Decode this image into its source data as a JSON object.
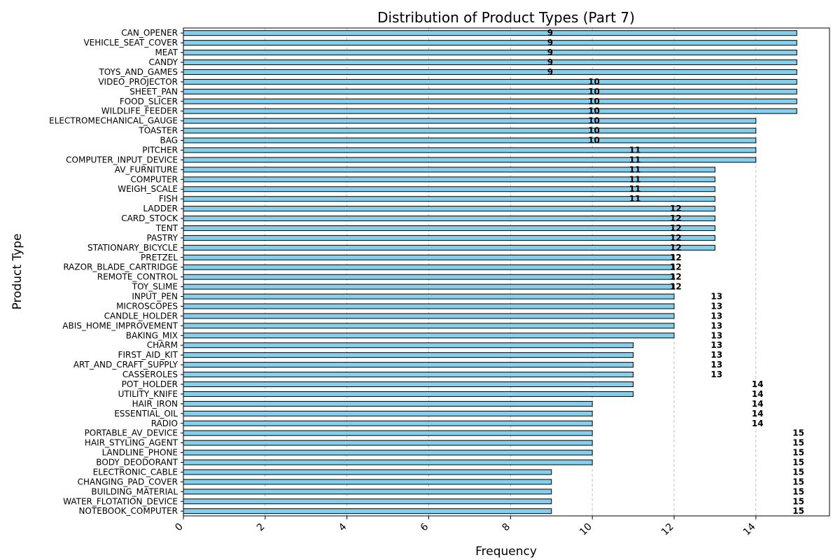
{
  "chart_data": {
    "type": "bar",
    "orientation": "horizontal",
    "title": "Distribution of Product Types (Part 7)",
    "xlabel": "Frequency",
    "ylabel": "Product Type",
    "xlim": [
      0,
      15.8
    ],
    "xticks": [
      0,
      2,
      4,
      6,
      8,
      10,
      12,
      14
    ],
    "grid": "x-axis dashed",
    "bar_color": "#87ceeb",
    "bar_edge_color": "#000000",
    "categories": [
      "CAN_OPENER",
      "VEHICLE_SEAT_COVER",
      "MEAT",
      "CANDY",
      "TOYS_AND_GAMES",
      "VIDEO_PROJECTOR",
      "SHEET_PAN",
      "FOOD_SLICER",
      "WILDLIFE_FEEDER",
      "ELECTROMECHANICAL_GAUGE",
      "TOASTER",
      "BAG",
      "PITCHER",
      "COMPUTER_INPUT_DEVICE",
      "AV_FURNITURE",
      "COMPUTER",
      "WEIGH_SCALE",
      "FISH",
      "LADDER",
      "CARD_STOCK",
      "TENT",
      "PASTRY",
      "STATIONARY_BICYCLE",
      "PRETZEL",
      "RAZOR_BLADE_CARTRIDGE",
      "REMOTE_CONTROL",
      "TOY_SLIME",
      "INPUT_PEN",
      "MICROSCOPES",
      "CANDLE_HOLDER",
      "ABIS_HOME_IMPROVEMENT",
      "BAKING_MIX",
      "CHARM",
      "FIRST_AID_KIT",
      "ART_AND_CRAFT_SUPPLY",
      "CASSEROLES",
      "POT_HOLDER",
      "UTILITY_KNIFE",
      "HAIR_IRON",
      "ESSENTIAL_OIL",
      "RADIO",
      "PORTABLE_AV_DEVICE",
      "HAIR_STYLING_AGENT",
      "LANDLINE_PHONE",
      "BODY_DEODORANT",
      "ELECTRONIC_CABLE",
      "CHANGING_PAD_COVER",
      "BUILDING_MATERIAL",
      "WATER_FLOTATION_DEVICE",
      "NOTEBOOK_COMPUTER"
    ],
    "values": [
      15,
      15,
      15,
      15,
      15,
      15,
      15,
      15,
      15,
      14,
      14,
      14,
      14,
      14,
      13,
      13,
      13,
      13,
      13,
      13,
      13,
      13,
      13,
      12,
      12,
      12,
      12,
      12,
      12,
      12,
      12,
      12,
      11,
      11,
      11,
      11,
      11,
      11,
      10,
      10,
      10,
      10,
      10,
      10,
      10,
      9,
      9,
      9,
      9,
      9
    ],
    "data_labels": [
      "9",
      "9",
      "9",
      "9",
      "9",
      "10",
      "10",
      "10",
      "10",
      "10",
      "10",
      "10",
      "11",
      "11",
      "11",
      "11",
      "11",
      "11",
      "12",
      "12",
      "12",
      "12",
      "12",
      "12",
      "12",
      "12",
      "12",
      "13",
      "13",
      "13",
      "13",
      "13",
      "13",
      "13",
      "13",
      "13",
      "14",
      "14",
      "14",
      "14",
      "14",
      "15",
      "15",
      "15",
      "15",
      "15",
      "15",
      "15",
      "15",
      "15"
    ]
  }
}
